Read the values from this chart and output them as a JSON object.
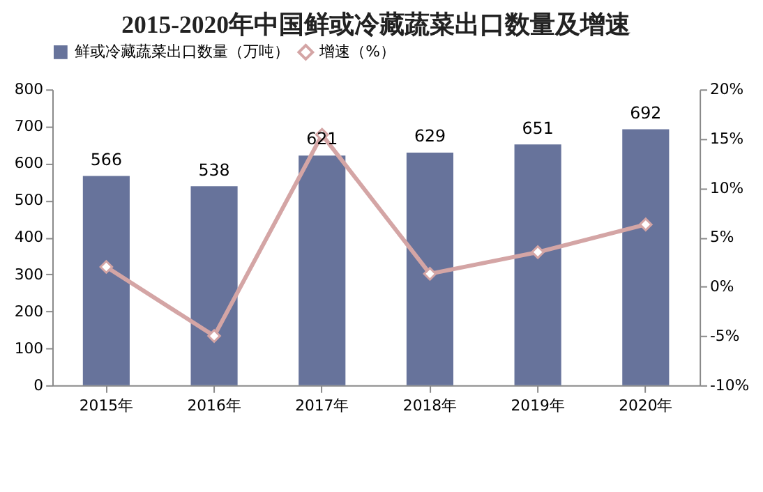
{
  "chart_data": {
    "type": "bar",
    "title": "2015-2020年中国鲜或冷藏蔬菜出口数量及增速",
    "categories": [
      "2015年",
      "2016年",
      "2017年",
      "2018年",
      "2019年",
      "2020年"
    ],
    "series": [
      {
        "name": "鲜或冷藏蔬菜出口数量（万吨）",
        "color": "#67739b",
        "values": [
          566,
          538,
          621,
          629,
          651,
          692
        ],
        "value_labels": [
          "566",
          "538",
          "621",
          "629",
          "651",
          "692"
        ]
      },
      {
        "name": "增速（%）",
        "type": "line",
        "axis": "y2",
        "color": "#d4a5a5",
        "marker": "diamond",
        "values": [
          2.0,
          -5.0,
          15.4,
          1.3,
          3.5,
          6.3
        ]
      }
    ],
    "ylim": [
      0,
      800
    ],
    "yticks": [
      0,
      100,
      200,
      300,
      400,
      500,
      600,
      700,
      800
    ],
    "y2lim": [
      -10,
      20
    ],
    "y2ticks": [
      {
        "value": -10,
        "label": "-10%"
      },
      {
        "value": -5,
        "label": "-5%"
      },
      {
        "value": 0,
        "label": "0%"
      },
      {
        "value": 5,
        "label": "5%"
      },
      {
        "value": 10,
        "label": "10%"
      },
      {
        "value": 15,
        "label": "15%"
      },
      {
        "value": 20,
        "label": "20%"
      }
    ],
    "grid": false,
    "legend": "top"
  }
}
